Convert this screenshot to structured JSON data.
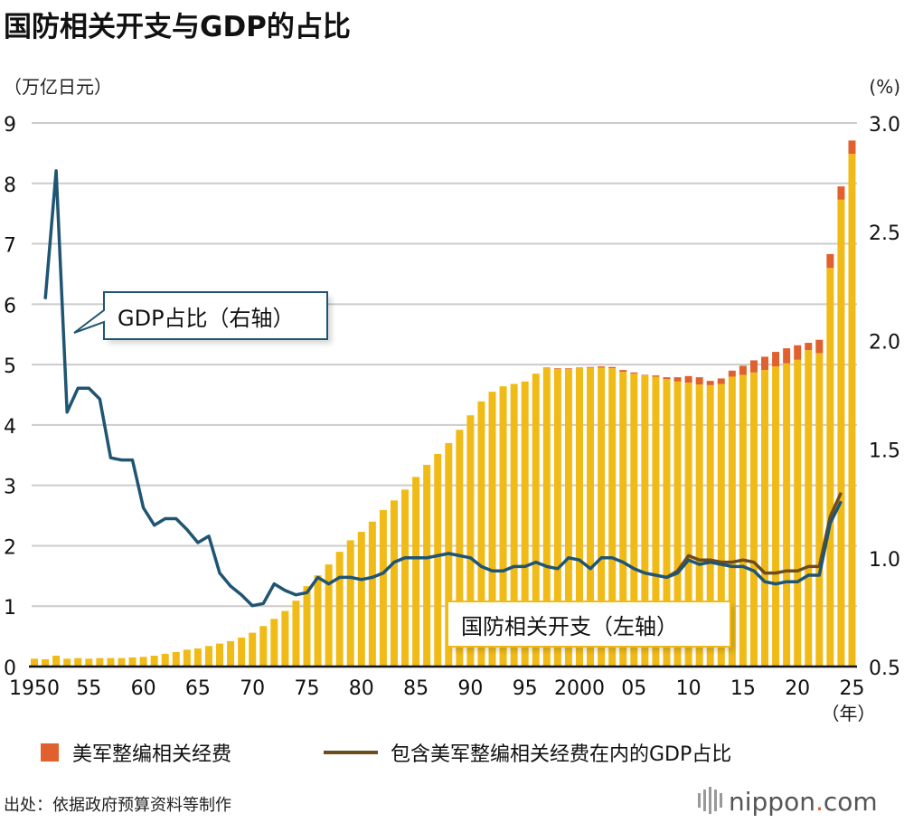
{
  "title": "国防相关开支与GDP的占比",
  "source": "出处：依据政府预算资料等制作",
  "logo": {
    "text": "nippon",
    "dot": ".",
    "suffix": "com"
  },
  "colors": {
    "bar": "#f0bb17",
    "realign": "#e0602e",
    "gdp": "#1f5573",
    "gdp_incl": "#6e4c1c",
    "grid": "#cccccc"
  },
  "chart_data": {
    "type": "bar+line",
    "title": "国防相关开支与GDP的占比",
    "left_unit": "（万亿日元）",
    "right_unit": "(%)",
    "x_unit": "（年）",
    "ylim_left": [
      0,
      9
    ],
    "ylim_right": [
      0.5,
      3.0
    ],
    "left_ticks": [
      "0",
      "1",
      "2",
      "3",
      "4",
      "5",
      "6",
      "7",
      "8",
      "9"
    ],
    "right_ticks": [
      "0.5",
      "1.0",
      "1.5",
      "2.0",
      "2.5",
      "3.0"
    ],
    "x_ticks": [
      {
        "year": 1950,
        "label": "1950"
      },
      {
        "year": 1955,
        "label": "55"
      },
      {
        "year": 1960,
        "label": "60"
      },
      {
        "year": 1965,
        "label": "65"
      },
      {
        "year": 1970,
        "label": "70"
      },
      {
        "year": 1975,
        "label": "75"
      },
      {
        "year": 1980,
        "label": "80"
      },
      {
        "year": 1985,
        "label": "85"
      },
      {
        "year": 1990,
        "label": "90"
      },
      {
        "year": 1995,
        "label": "95"
      },
      {
        "year": 2000,
        "label": "2000"
      },
      {
        "year": 2005,
        "label": "05"
      },
      {
        "year": 2010,
        "label": "10"
      },
      {
        "year": 2015,
        "label": "15"
      },
      {
        "year": 2020,
        "label": "20"
      },
      {
        "year": 2025,
        "label": "25"
      }
    ],
    "grid": true,
    "years_start": 1950,
    "defense_spending": [
      0.13,
      0.12,
      0.18,
      0.13,
      0.14,
      0.13,
      0.14,
      0.14,
      0.14,
      0.15,
      0.16,
      0.18,
      0.21,
      0.24,
      0.28,
      0.3,
      0.34,
      0.38,
      0.42,
      0.48,
      0.56,
      0.67,
      0.79,
      0.92,
      1.09,
      1.33,
      1.51,
      1.69,
      1.9,
      2.09,
      2.23,
      2.4,
      2.59,
      2.75,
      2.93,
      3.14,
      3.34,
      3.52,
      3.7,
      3.92,
      4.16,
      4.39,
      4.55,
      4.64,
      4.68,
      4.72,
      4.85,
      4.94,
      4.93,
      4.93,
      4.94,
      4.95,
      4.95,
      4.94,
      4.88,
      4.85,
      4.82,
      4.8,
      4.76,
      4.72,
      4.7,
      4.67,
      4.66,
      4.68,
      4.8,
      4.83,
      4.87,
      4.91,
      4.97,
      5.02,
      5.08,
      5.24,
      5.19,
      6.6,
      7.73,
      8.49
    ],
    "realignment_cost": [
      0,
      0,
      0,
      0,
      0,
      0,
      0,
      0,
      0,
      0,
      0,
      0,
      0,
      0,
      0,
      0,
      0,
      0,
      0,
      0,
      0,
      0,
      0,
      0,
      0,
      0,
      0,
      0,
      0,
      0,
      0,
      0,
      0,
      0,
      0,
      0,
      0,
      0,
      0,
      0,
      0,
      0,
      0,
      0,
      0,
      0,
      0,
      0.01,
      0.01,
      0.01,
      0.01,
      0.01,
      0.02,
      0.02,
      0.03,
      0.02,
      0.01,
      0.02,
      0.03,
      0.07,
      0.11,
      0.12,
      0.07,
      0.09,
      0.1,
      0.15,
      0.2,
      0.22,
      0.24,
      0.25,
      0.24,
      0.12,
      0.22,
      0.23,
      0.22,
      0.22
    ],
    "gdp_ratio": {
      "label": "GDP占比（右轴）",
      "start": 1951,
      "values": [
        2.19,
        2.78,
        1.67,
        1.78,
        1.78,
        1.73,
        1.46,
        1.45,
        1.45,
        1.23,
        1.15,
        1.18,
        1.18,
        1.13,
        1.07,
        1.1,
        0.93,
        0.87,
        0.83,
        0.78,
        0.79,
        0.88,
        0.85,
        0.83,
        0.84,
        0.91,
        0.88,
        0.91,
        0.91,
        0.9,
        0.91,
        0.93,
        0.98,
        1.0,
        1.0,
        1.0,
        1.01,
        1.02,
        1.01,
        1.0,
        0.96,
        0.94,
        0.94,
        0.96,
        0.96,
        0.98,
        0.96,
        0.95,
        1.0,
        0.99,
        0.95,
        1.0,
        1.0,
        0.98,
        0.95,
        0.93,
        0.92,
        0.91,
        0.93,
        0.99,
        0.97,
        0.98,
        0.97,
        0.96,
        0.96,
        0.94,
        0.89,
        0.88,
        0.89,
        0.89,
        0.92,
        0.92,
        1.16,
        1.26
      ]
    },
    "gdp_ratio_incl": {
      "start": 2008,
      "values": [
        0.91,
        0.94,
        1.01,
        0.99,
        0.99,
        0.98,
        0.98,
        0.99,
        0.98,
        0.93,
        0.93,
        0.94,
        0.94,
        0.96,
        0.96,
        1.19,
        1.3
      ]
    },
    "bar_label": "国防相关开支（左轴）",
    "legend": [
      {
        "label": "美军整编相关经费",
        "kind": "square"
      },
      {
        "label": "包含美军整编相关经费在内的GDP占比",
        "kind": "line"
      }
    ]
  }
}
